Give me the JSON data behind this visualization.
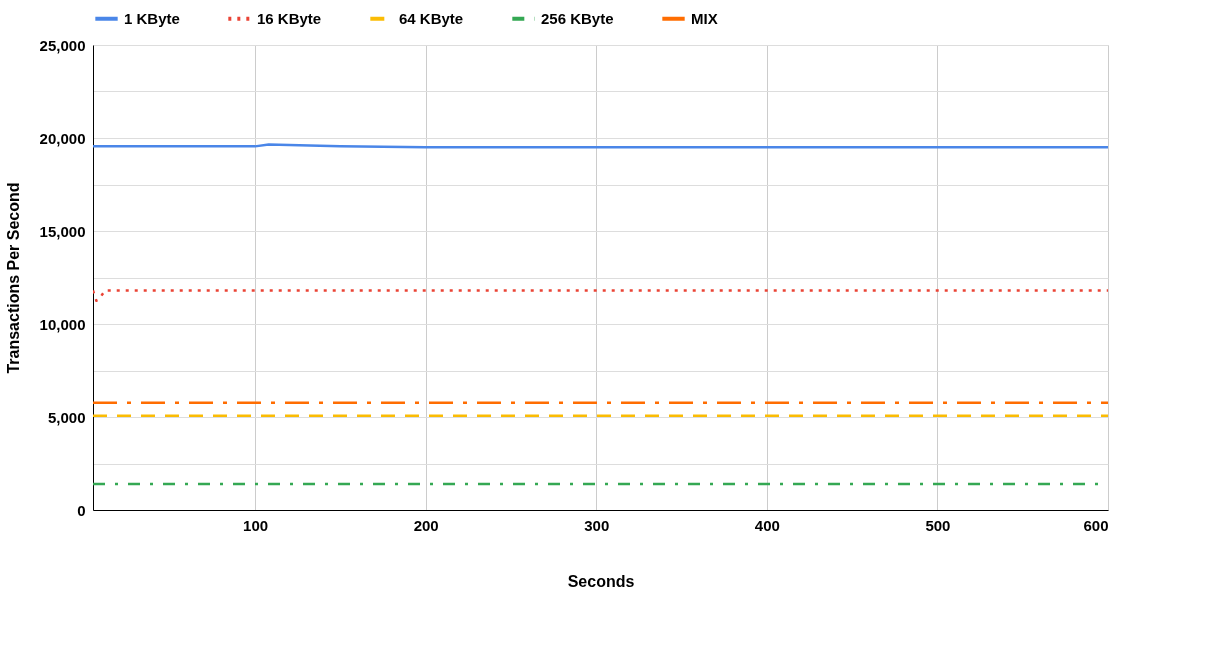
{
  "chart_data": {
    "type": "line",
    "xlabel": "Seconds",
    "ylabel": "Transactions Per Second",
    "xlim": [
      5,
      600
    ],
    "xticks": [
      100,
      200,
      300,
      400,
      500,
      600
    ],
    "ylim": [
      0,
      25000
    ],
    "yticks": [
      0,
      {
        "value": 2500,
        "label": null
      },
      {
        "value": 5000,
        "label": "5,000"
      },
      {
        "value": 7500,
        "label": null
      },
      {
        "value": 10000,
        "label": "10,000"
      },
      {
        "value": 12500,
        "label": null
      },
      {
        "value": 15000,
        "label": "15,000"
      },
      {
        "value": 17500,
        "label": null
      },
      {
        "value": 20000,
        "label": "20,000"
      },
      {
        "value": 22500,
        "label": null
      },
      {
        "value": 25000,
        "label": "25,000"
      }
    ],
    "grid": true,
    "legend": "top",
    "marker": "none",
    "series": [
      {
        "name": "1 KByte",
        "color": "#4a86e8",
        "line_style": "solid",
        "x": [
          5,
          50,
          100,
          108,
          150,
          200,
          300,
          400,
          500,
          600
        ],
        "values": [
          19550,
          19550,
          19550,
          19650,
          19550,
          19500,
          19500,
          19500,
          19500,
          19500
        ]
      },
      {
        "name": "16 KByte",
        "color": "#ea4335",
        "line_style": "dotted",
        "x": [
          5,
          7,
          9,
          12,
          100,
          200,
          300,
          400,
          500,
          600
        ],
        "values": [
          11800,
          11250,
          11400,
          11800,
          11800,
          11800,
          11800,
          11800,
          11800,
          11800
        ]
      },
      {
        "name": "64 KByte",
        "color": "#fbbc04",
        "line_style": "dashed",
        "x": [
          5,
          600
        ],
        "values": [
          5070,
          5070
        ]
      },
      {
        "name": "256 KByte",
        "color": "#34a853",
        "line_style": "dashdot",
        "x": [
          5,
          595
        ],
        "values": [
          1400,
          1400
        ]
      },
      {
        "name": "MIX",
        "color": "#ff6d01",
        "line_style": "longdashdot",
        "x": [
          5,
          600
        ],
        "values": [
          5770,
          5770
        ]
      }
    ]
  }
}
